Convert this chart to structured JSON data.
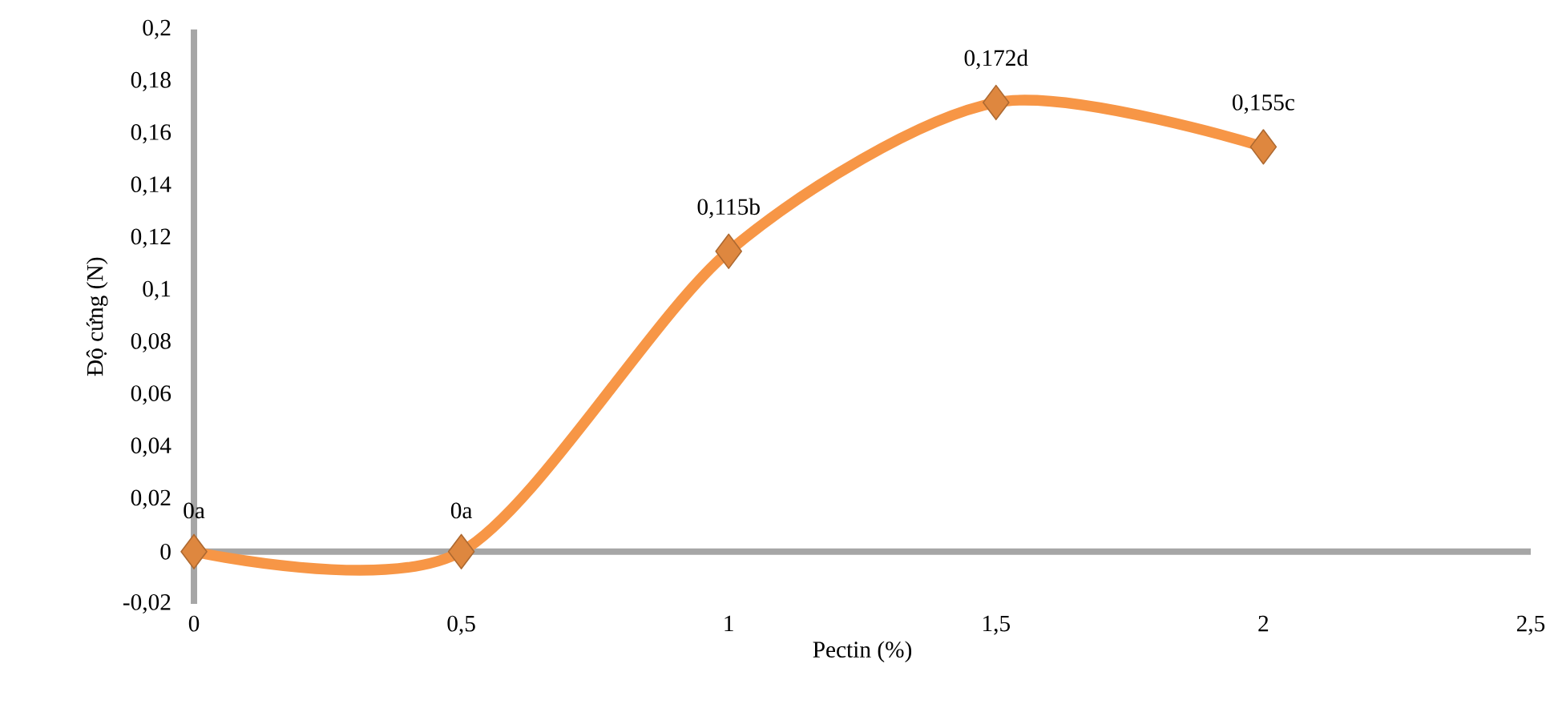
{
  "chart_data": {
    "type": "line",
    "xlabel": "Pectin (%)",
    "ylabel": "Độ cứng (N)",
    "x": [
      0,
      0.5,
      1,
      1.5,
      2
    ],
    "series": [
      {
        "color": "#f79646",
        "values": [
          0,
          0,
          0.115,
          0.172,
          0.155
        ],
        "value_labels": [
          "0a",
          "0a",
          "0,115b",
          "0,172d",
          "0,155c"
        ]
      }
    ],
    "xlim": [
      0,
      2.5
    ],
    "xticks": [
      0,
      {
        "value": 0.5,
        "label": "0,5"
      },
      1,
      {
        "value": 1.5,
        "label": "1,5"
      },
      2,
      {
        "value": 2.5,
        "label": "2,5"
      }
    ],
    "ylim": [
      -0.02,
      0.2
    ],
    "yticks": [
      {
        "value": -0.02,
        "label": "-0,02"
      },
      0,
      {
        "value": 0.02,
        "label": "0,02"
      },
      {
        "value": 0.04,
        "label": "0,04"
      },
      {
        "value": 0.06,
        "label": "0,06"
      },
      {
        "value": 0.08,
        "label": "0,08"
      },
      {
        "value": 0.1,
        "label": "0,1"
      },
      {
        "value": 0.12,
        "label": "0,12"
      },
      {
        "value": 0.14,
        "label": "0,14"
      },
      {
        "value": 0.16,
        "label": "0,16"
      },
      {
        "value": 0.18,
        "label": "0,18"
      },
      {
        "value": 0.2,
        "label": "0,2"
      }
    ],
    "marker": "diamond",
    "line_style": "solid"
  }
}
